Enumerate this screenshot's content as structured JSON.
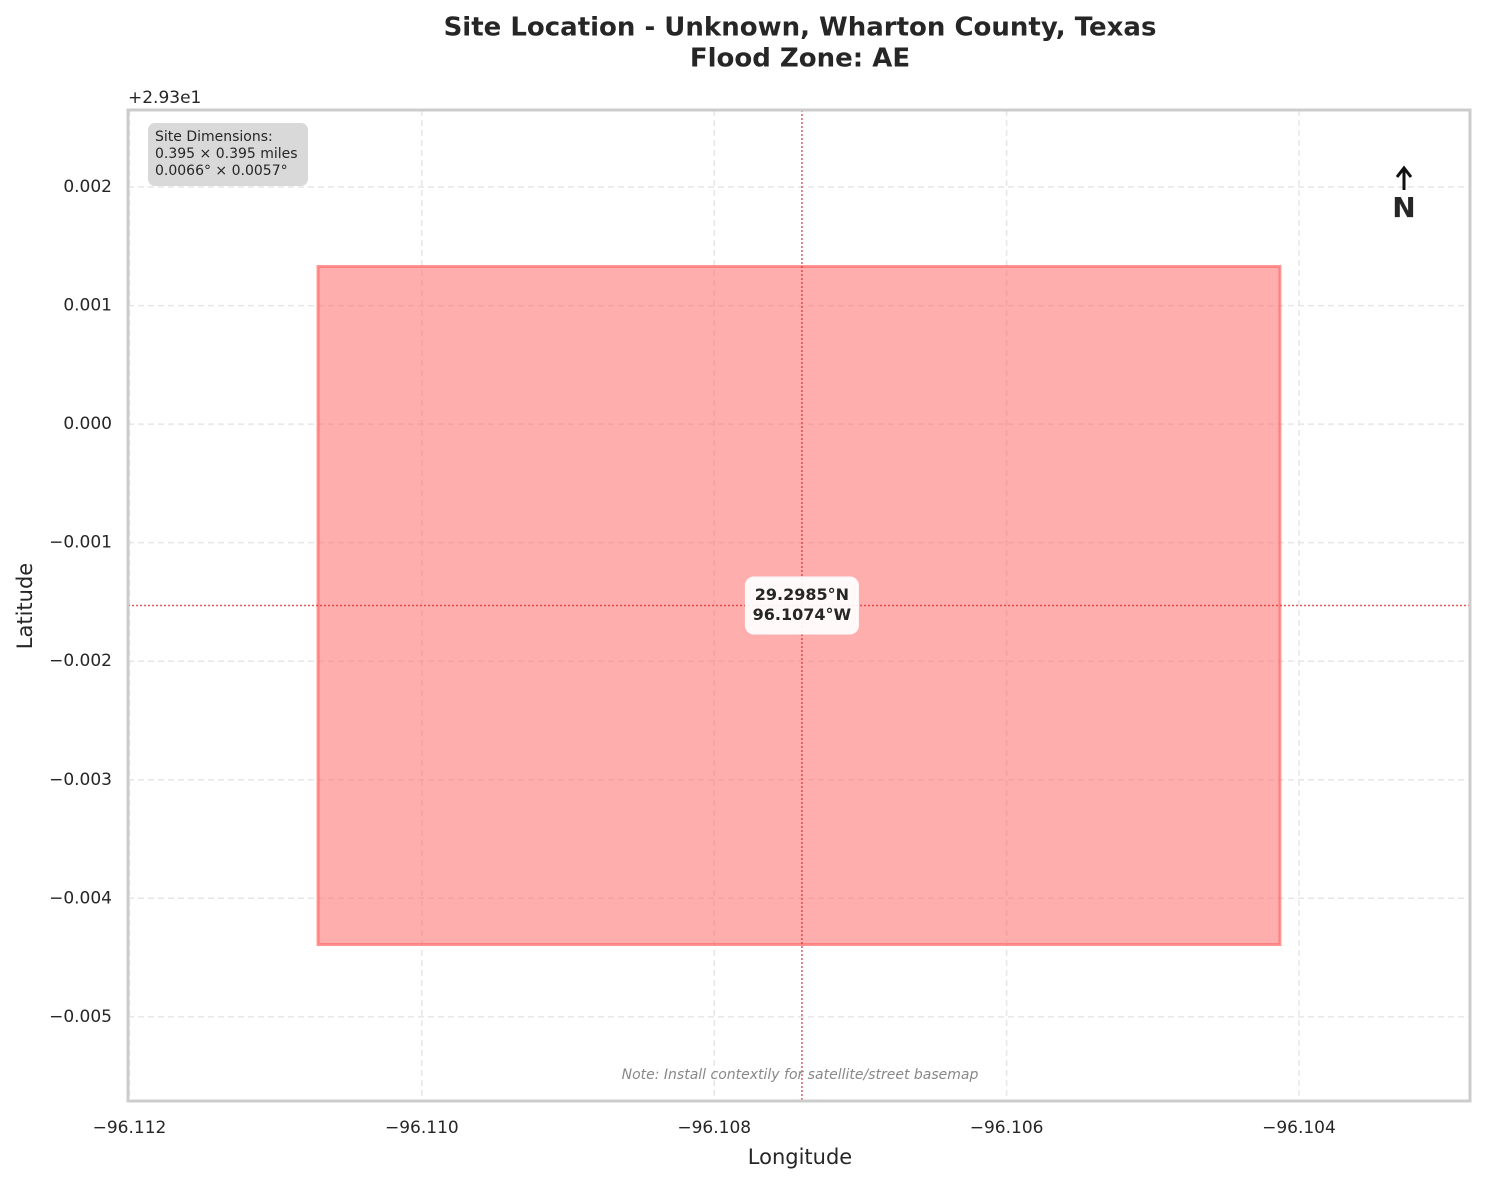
{
  "chart_data": {
    "type": "site-map",
    "title": "Site Location - Unknown, Wharton County, Texas",
    "subtitle": "Flood Zone: AE",
    "x_label": "Longitude",
    "y_label": "Latitude",
    "y_offset_text": "+2.93e1",
    "xlim": [
      -96.11201,
      -96.10283
    ],
    "ylim": [
      -0.00571,
      0.00265
    ],
    "xticks": [
      {
        "value": -96.112,
        "label": "−96.112"
      },
      {
        "value": -96.11,
        "label": "−96.110"
      },
      {
        "value": -96.108,
        "label": "−96.108"
      },
      {
        "value": -96.106,
        "label": "−96.106"
      },
      {
        "value": -96.104,
        "label": "−96.104"
      }
    ],
    "yticks": [
      0.002,
      0.001,
      {
        "value": 0,
        "label": "0.000"
      },
      {
        "value": -0.001,
        "label": "−0.001"
      },
      {
        "value": -0.002,
        "label": "−0.002"
      },
      {
        "value": -0.003,
        "label": "−0.003"
      },
      {
        "value": -0.004,
        "label": "−0.004"
      },
      {
        "value": -0.005,
        "label": "−0.005"
      }
    ],
    "grid": true,
    "site": {
      "x": [
        -96.11071,
        -96.10413
      ],
      "y": [
        -0.00439,
        0.00133
      ],
      "color": "#ff6b6b"
    },
    "center": {
      "x": -96.1074,
      "y": -0.00153,
      "color": "#e03030"
    },
    "center_label": [
      "29.2985°N",
      "96.1074°W"
    ],
    "info_box": [
      "Site Dimensions:",
      "0.395 × 0.395 miles",
      "0.0066° × 0.0057°"
    ],
    "north_label": "N",
    "note": "Note: Install contextily for satellite/street basemap"
  }
}
